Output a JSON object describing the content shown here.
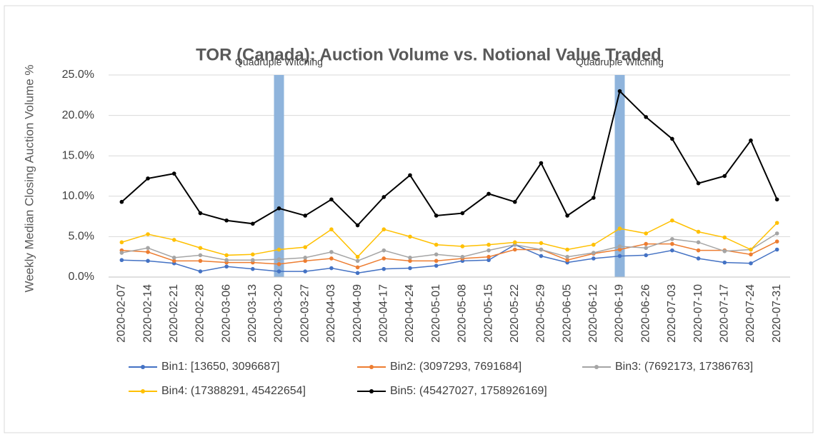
{
  "chart_data": {
    "type": "line",
    "title": "TOR (Canada): Auction Volume vs. Notional Value Traded",
    "y_label": "Weekly Median Closing Auction Volume %",
    "categories": [
      "2020-02-07",
      "2020-02-14",
      "2020-02-21",
      "2020-02-28",
      "2020-03-06",
      "2020-03-13",
      "2020-03-20",
      "2020-03-27",
      "2020-04-03",
      "2020-04-09",
      "2020-04-17",
      "2020-04-24",
      "2020-05-01",
      "2020-05-08",
      "2020-05-15",
      "2020-05-22",
      "2020-05-29",
      "2020-06-05",
      "2020-06-12",
      "2020-06-19",
      "2020-06-26",
      "2020-07-03",
      "2020-07-10",
      "2020-07-17",
      "2020-07-24",
      "2020-07-31"
    ],
    "series": [
      {
        "name": "Bin1: [13650, 3096687]",
        "color": "#4472c4",
        "values": [
          2.1,
          2.0,
          1.7,
          0.7,
          1.3,
          1.0,
          0.7,
          0.7,
          1.1,
          0.5,
          1.0,
          1.1,
          1.4,
          2.0,
          2.1,
          4.0,
          2.6,
          1.8,
          2.3,
          2.6,
          2.7,
          3.3,
          2.3,
          1.8,
          1.7,
          3.4
        ]
      },
      {
        "name": "Bin2: (3097293, 7691684]",
        "color": "#ed7d31",
        "values": [
          3.3,
          3.1,
          2.0,
          2.0,
          1.8,
          1.8,
          1.6,
          2.0,
          2.3,
          1.2,
          2.3,
          2.0,
          2.0,
          2.3,
          2.5,
          3.4,
          3.4,
          2.1,
          2.9,
          3.4,
          4.1,
          4.1,
          3.3,
          3.3,
          2.8,
          4.4
        ]
      },
      {
        "name": "Bin3: (7692173, 17386763]",
        "color": "#a5a5a5",
        "values": [
          3.0,
          3.6,
          2.4,
          2.7,
          2.1,
          2.1,
          2.2,
          2.4,
          3.1,
          2.0,
          3.3,
          2.4,
          2.8,
          2.5,
          3.3,
          4.0,
          3.4,
          2.5,
          3.0,
          3.8,
          3.6,
          4.7,
          4.3,
          3.2,
          3.4,
          5.4
        ]
      },
      {
        "name": "Bin4: (17388291, 45422654]",
        "color": "#ffc000",
        "values": [
          4.3,
          5.3,
          4.6,
          3.6,
          2.7,
          2.8,
          3.4,
          3.7,
          5.9,
          2.5,
          5.9,
          5.0,
          4.0,
          3.8,
          4.0,
          4.3,
          4.2,
          3.4,
          4.0,
          6.0,
          5.4,
          7.0,
          5.6,
          4.9,
          3.4,
          6.7
        ]
      },
      {
        "name": "Bin5: (45427027, 1758926169]",
        "color": "#000000",
        "values": [
          9.3,
          12.2,
          12.8,
          7.9,
          7.0,
          6.6,
          8.5,
          7.6,
          9.6,
          6.4,
          9.9,
          12.6,
          7.6,
          7.9,
          10.3,
          9.3,
          14.1,
          7.6,
          9.8,
          23.0,
          19.8,
          17.1,
          11.6,
          12.5,
          16.9,
          9.6
        ]
      }
    ],
    "annotations": [
      {
        "text": "Quadruple Witching",
        "category": "2020-03-20"
      },
      {
        "text": "Quadruple Witching",
        "category": "2020-06-19"
      }
    ],
    "highlight_color": "#8fb4dc",
    "ylim": [
      0,
      25
    ],
    "yticks": [
      {
        "value": 0,
        "label": "0.0%"
      },
      {
        "value": 5,
        "label": "5.0%"
      },
      {
        "value": 10,
        "label": "10.0%"
      },
      {
        "value": 15,
        "label": "15.0%"
      },
      {
        "value": 20,
        "label": "20.0%"
      },
      {
        "value": 25,
        "label": "25.0%"
      }
    ],
    "grid": true,
    "legend": "bottom"
  }
}
